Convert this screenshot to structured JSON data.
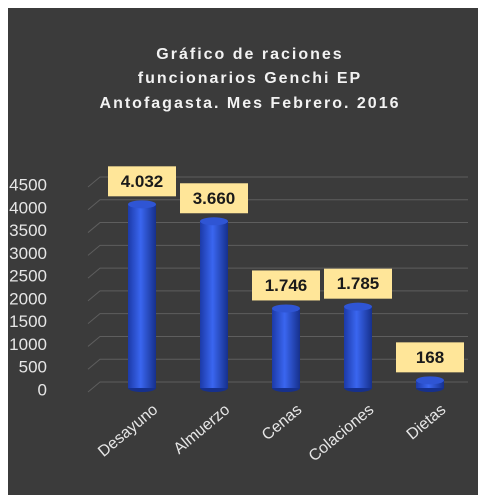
{
  "chart_data": {
    "type": "bar",
    "title": [
      "Gráfico de raciones",
      "funcionarios Genchi EP",
      "Antofagasta. Mes Febrero. 2016"
    ],
    "categories": [
      "Desayuno",
      "Almuerzo",
      "Cenas",
      "Colaciones",
      "Dietas"
    ],
    "values": [
      4032,
      3660,
      1746,
      1785,
      168
    ],
    "value_labels": [
      "4.032",
      "3.660",
      "1.746",
      "1.785",
      "168"
    ],
    "color": "#2f55d4",
    "ylim": [
      0,
      4500
    ],
    "yticks": [
      0,
      500,
      1000,
      1500,
      2000,
      2500,
      3000,
      3500,
      4000,
      4500
    ],
    "grid": true
  }
}
